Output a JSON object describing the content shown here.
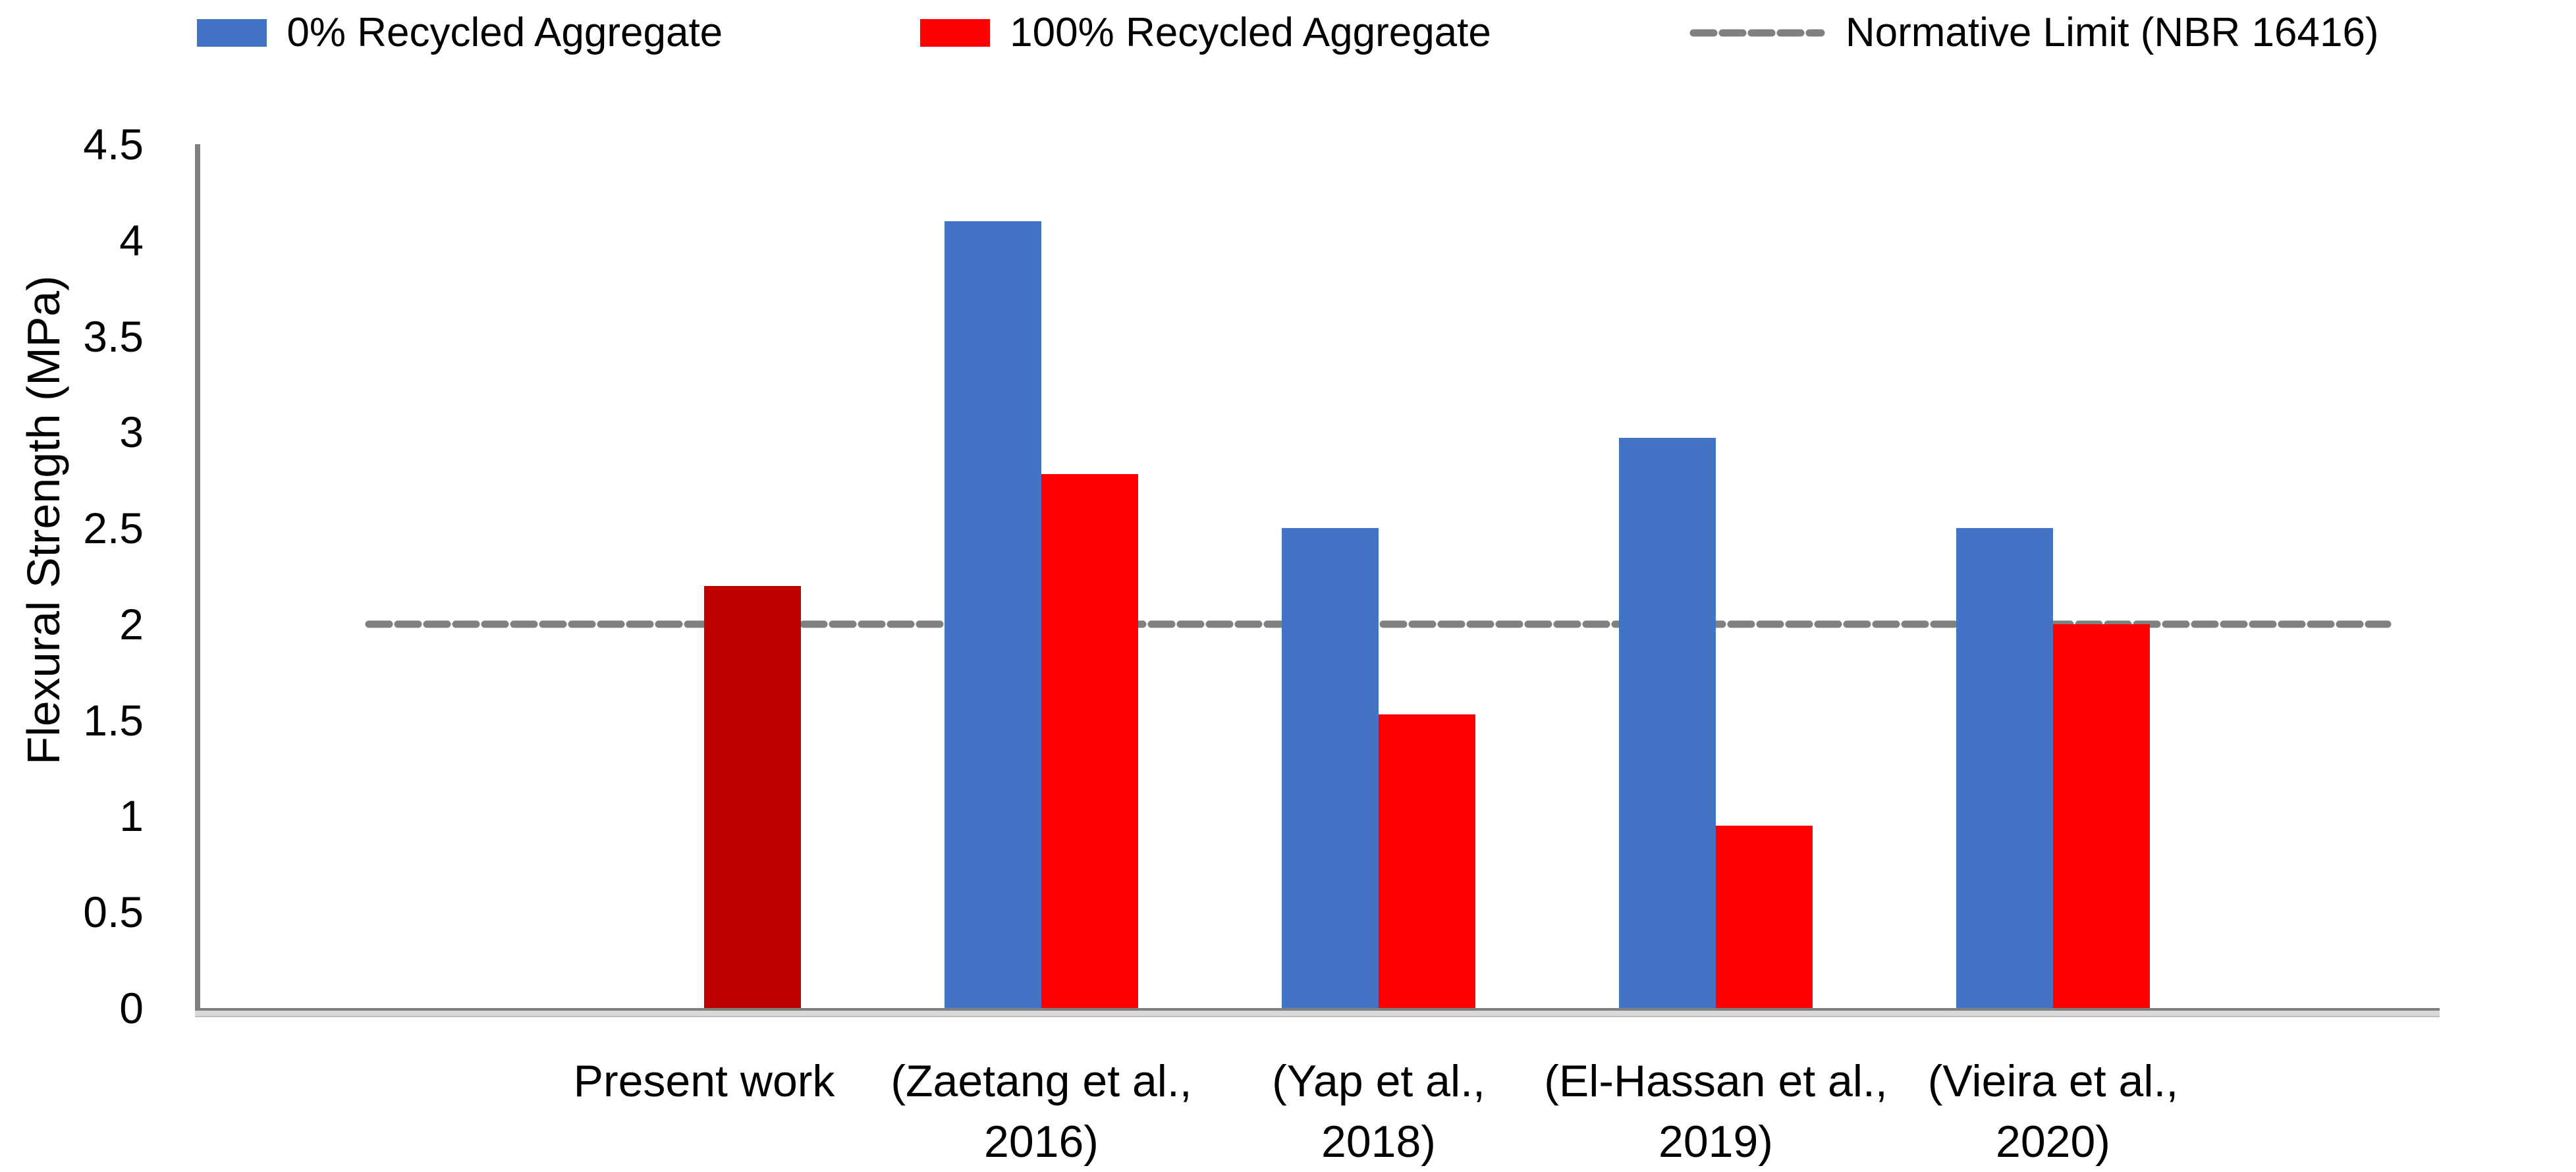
{
  "chart_data": {
    "type": "bar",
    "title": "",
    "ylabel": "Flexural Strength (MPa)",
    "xlabel": "",
    "ylim": [
      0,
      4.5
    ],
    "ytick_labels": [
      "0",
      "0.5",
      "1",
      "1.5",
      "2",
      "2.5",
      "3",
      "3.5",
      "4",
      "4.5"
    ],
    "grid": false,
    "legend_position": "top",
    "categories": [
      "Present work",
      "(Zaetang et al., 2016)",
      "(Yap et al., 2018)",
      "(El-Hassan et al., 2019)",
      "(Vieira et al., 2020)"
    ],
    "category_label_lines": [
      [
        "Present work"
      ],
      [
        "(Zaetang et al.,",
        "2016)"
      ],
      [
        "(Yap et al.,",
        "2018)"
      ],
      [
        "(El-Hassan et al.,",
        "2019)"
      ],
      [
        "(Vieira et al.,",
        "2020)"
      ]
    ],
    "series": [
      {
        "name": "0% Recycled Aggregate",
        "color": "#4472C4",
        "values": [
          null,
          4.1,
          2.5,
          2.97,
          2.5
        ]
      },
      {
        "name": "100% Recycled Aggregate",
        "color": "#FF0000",
        "bar_colors": [
          "#C00000",
          "#FF0000",
          "#FF0000",
          "#FF0000",
          "#FF0000"
        ],
        "values": [
          2.2,
          2.78,
          1.53,
          0.95,
          2.0
        ]
      }
    ],
    "reference_line": {
      "label": "Normative Limit (NBR 16416)",
      "value": 2,
      "color": "#808080",
      "style": "dashed"
    }
  },
  "legend": {
    "items": [
      {
        "swatch": "bar",
        "color": "#4472C4",
        "label": "0% Recycled Aggregate"
      },
      {
        "swatch": "bar",
        "color": "#FF0000",
        "label": "100% Recycled Aggregate"
      },
      {
        "swatch": "dash",
        "color": "#808080",
        "label": "Normative Limit (NBR 16416)"
      }
    ]
  },
  "colors": {
    "series_blue": "#4472C4",
    "series_red": "#FF0000",
    "present_work_dark_red": "#C00000",
    "axis_gray": "#808080",
    "baseline_band_gray": "#D9D9D9"
  }
}
